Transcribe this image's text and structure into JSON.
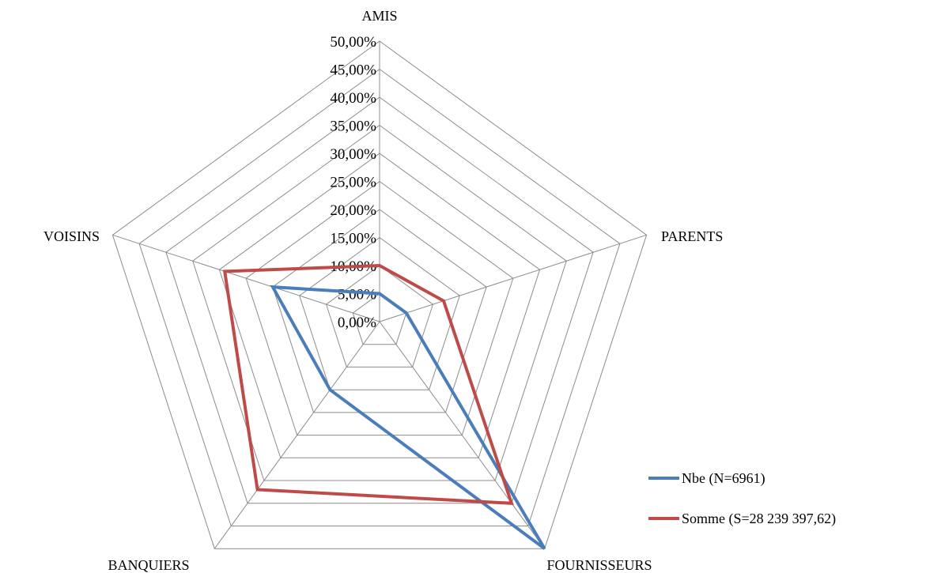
{
  "chart_data": {
    "type": "radar",
    "title": "",
    "categories": [
      "AMIS",
      "PARENTS",
      "FOURNISSEURS",
      "BANQUIERS",
      "VOISINS"
    ],
    "ylim": [
      0,
      50
    ],
    "ytick_values": [
      0,
      5,
      10,
      15,
      20,
      25,
      30,
      35,
      40,
      45,
      50
    ],
    "ytick_labels": [
      "0,00%",
      "5,00%",
      "10,00%",
      "15,00%",
      "20,00%",
      "25,00%",
      "30,00%",
      "35,00%",
      "40,00%",
      "45,00%",
      "50,00%"
    ],
    "grid": true,
    "legend_position": "bottom-right",
    "series": [
      {
        "name": "Nbe (N=6961)",
        "color": "#4a7ebb",
        "values": [
          5.0,
          5.0,
          50.0,
          15.0,
          20.0
        ]
      },
      {
        "name": "Somme (S=28 239 397,62)",
        "color": "#be4b48",
        "values": [
          10.0,
          12.0,
          40.0,
          37.0,
          29.0
        ]
      }
    ]
  }
}
